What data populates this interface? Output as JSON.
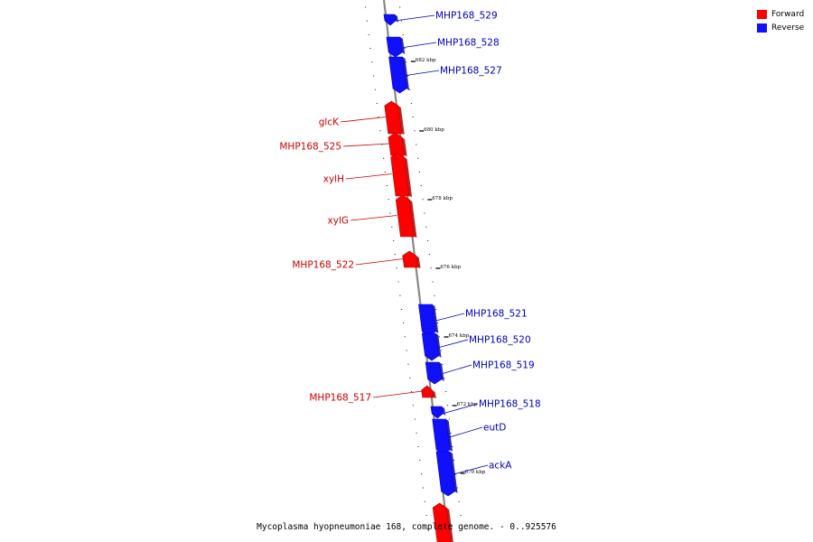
{
  "legend": {
    "forward_label": "Forward",
    "reverse_label": "Reverse",
    "forward_color": "#ff0000",
    "reverse_color": "#1010ff"
  },
  "caption": "Mycoplasma hyopneumoniae 168, complete genome. - 0..925576",
  "colors": {
    "forward_text": "#cc0000",
    "reverse_text": "#0000bb",
    "backbone": "#888888"
  },
  "ruler": [
    {
      "label": "682 kbp",
      "kbp": 682
    },
    {
      "label": "680 kbp",
      "kbp": 680
    },
    {
      "label": "678 kbp",
      "kbp": 678
    },
    {
      "label": "676 kbp",
      "kbp": 676
    },
    {
      "label": "674 kbp",
      "kbp": 674
    },
    {
      "label": "672 kbp",
      "kbp": 672
    },
    {
      "label": "670 kbp",
      "kbp": 670
    }
  ],
  "genes": [
    {
      "name": "MHP168_529",
      "strand": "reverse"
    },
    {
      "name": "MHP168_528",
      "strand": "reverse"
    },
    {
      "name": "MHP168_527",
      "strand": "reverse"
    },
    {
      "name": "glcK",
      "strand": "forward"
    },
    {
      "name": "MHP168_525",
      "strand": "forward"
    },
    {
      "name": "xylH",
      "strand": "forward"
    },
    {
      "name": "xylG",
      "strand": "forward"
    },
    {
      "name": "MHP168_522",
      "strand": "forward"
    },
    {
      "name": "MHP168_521",
      "strand": "reverse"
    },
    {
      "name": "MHP168_520",
      "strand": "reverse"
    },
    {
      "name": "MHP168_519",
      "strand": "reverse"
    },
    {
      "name": "MHP168_517",
      "strand": "forward"
    },
    {
      "name": "MHP168_518",
      "strand": "reverse"
    },
    {
      "name": "eutD",
      "strand": "reverse"
    },
    {
      "name": "ackA",
      "strand": "reverse"
    },
    {
      "name": "",
      "strand": "forward"
    }
  ]
}
